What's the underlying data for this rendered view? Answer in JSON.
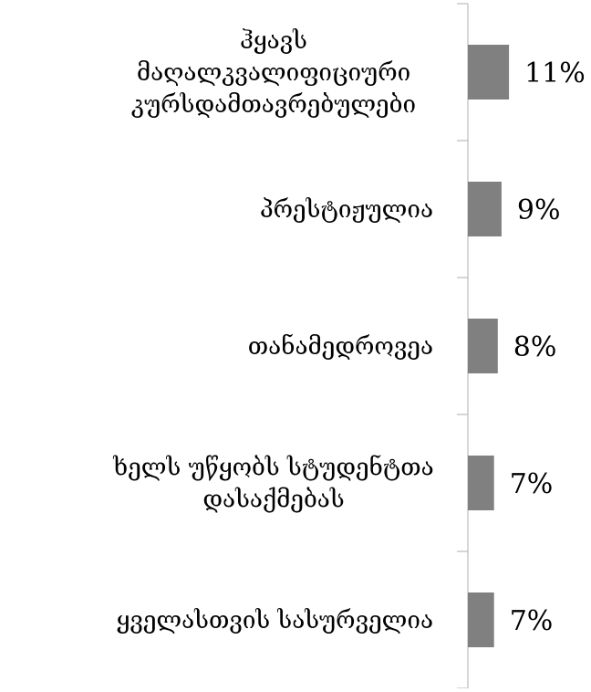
{
  "chart_data": {
    "type": "bar",
    "orientation": "horizontal",
    "categories": [
      "ჰყავს მაღალკვალიფიციური კურსდამთავრებულები",
      "პრესტიჟულია",
      "თანამედროვეა",
      "ხელს უწყობს სტუდენტთა დასაქმებას",
      "ყველასთვის სასურველია"
    ],
    "category_lines": [
      [
        "ჰყავს",
        "მაღალკვალიფიციური",
        "კურსდამთავრებულები"
      ],
      [
        "პრესტიჟულია"
      ],
      [
        "თანამედროვეა"
      ],
      [
        "ხელს უწყობს სტუდენტთა",
        "დასაქმებას"
      ],
      [
        "ყველასთვის სასურველია"
      ]
    ],
    "values": [
      11,
      9,
      8,
      7,
      7
    ],
    "value_labels": [
      "11%",
      "9%",
      "8%",
      "7%",
      "7%"
    ],
    "xlim": [
      0,
      100
    ],
    "grid": false,
    "legend": "none",
    "colors": {
      "bar": "#808080",
      "axis": "#bfbfbf",
      "text": "#000000"
    }
  }
}
